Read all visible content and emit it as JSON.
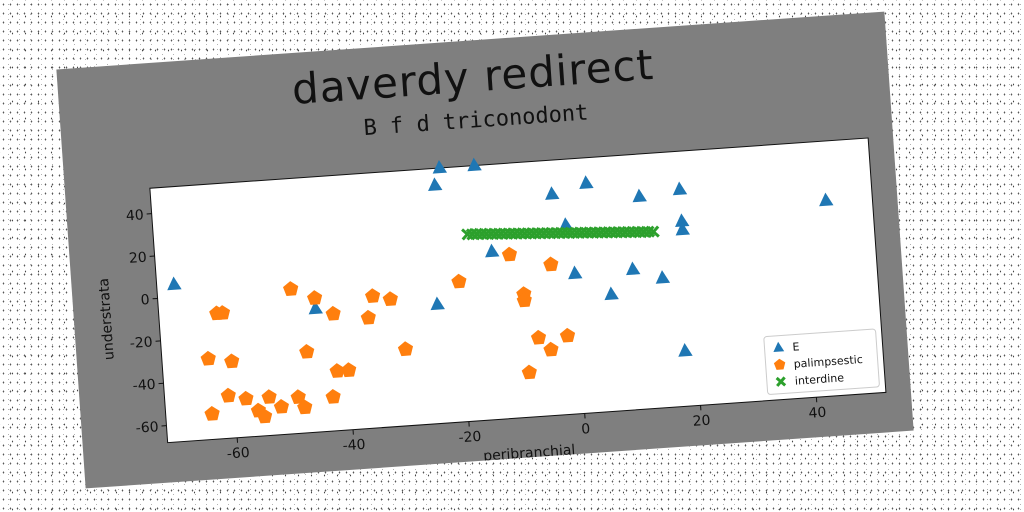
{
  "chart_data": {
    "type": "scatter",
    "title": "daverdy redirect",
    "subtitle": "B f d triconodont",
    "xlabel": "peribranchial",
    "ylabel": "understrata",
    "xlim": [
      -72,
      52
    ],
    "ylim": [
      -68,
      52
    ],
    "xticks": [
      -60,
      -40,
      -20,
      0,
      20,
      40
    ],
    "yticks": [
      -60,
      -40,
      -20,
      0,
      20,
      40
    ],
    "grid": false,
    "legend_position": "lower-right",
    "series": [
      {
        "name": "E",
        "marker": "triangle",
        "color": "#1f77b4",
        "points": [
          {
            "x": -69,
            "y": 6
          },
          {
            "x": -23,
            "y": 44
          },
          {
            "x": -22,
            "y": 52
          },
          {
            "x": -16,
            "y": 52
          },
          {
            "x": -3,
            "y": 36
          },
          {
            "x": 3,
            "y": 40
          },
          {
            "x": 12,
            "y": 32
          },
          {
            "x": 19,
            "y": 34
          },
          {
            "x": 19,
            "y": 19
          },
          {
            "x": 19,
            "y": 15
          },
          {
            "x": 44,
            "y": 24
          },
          {
            "x": -1,
            "y": 21
          },
          {
            "x": -14,
            "y": 11
          },
          {
            "x": 0,
            "y": -2
          },
          {
            "x": 10,
            "y": -2
          },
          {
            "x": 6,
            "y": -13
          },
          {
            "x": 15,
            "y": -7
          },
          {
            "x": -24,
            "y": -12
          },
          {
            "x": -45,
            "y": -10
          },
          {
            "x": 18,
            "y": -42
          }
        ]
      },
      {
        "name": "palimpsestic",
        "marker": "pentagon",
        "color": "#ff7f0e",
        "points": [
          {
            "x": -62,
            "y": -9
          },
          {
            "x": -61,
            "y": -9
          },
          {
            "x": -49,
            "y": 0
          },
          {
            "x": -45,
            "y": -5
          },
          {
            "x": -42,
            "y": -13
          },
          {
            "x": -35,
            "y": -6
          },
          {
            "x": -32,
            "y": -8
          },
          {
            "x": -36,
            "y": -16
          },
          {
            "x": -20,
            "y": -2
          },
          {
            "x": -11,
            "y": 9
          },
          {
            "x": -4,
            "y": 3
          },
          {
            "x": -9,
            "y": -10
          },
          {
            "x": -9,
            "y": -13
          },
          {
            "x": -64,
            "y": -30
          },
          {
            "x": -60,
            "y": -32
          },
          {
            "x": -47,
            "y": -30
          },
          {
            "x": -30,
            "y": -32
          },
          {
            "x": -7,
            "y": -31
          },
          {
            "x": -2,
            "y": -31
          },
          {
            "x": -5,
            "y": -37
          },
          {
            "x": -42,
            "y": -40
          },
          {
            "x": -40,
            "y": -40
          },
          {
            "x": -61,
            "y": -48
          },
          {
            "x": -58,
            "y": -50
          },
          {
            "x": -54,
            "y": -50
          },
          {
            "x": -49,
            "y": -51
          },
          {
            "x": -64,
            "y": -56
          },
          {
            "x": -56,
            "y": -56
          },
          {
            "x": -52,
            "y": -55
          },
          {
            "x": -55,
            "y": -59
          },
          {
            "x": -48,
            "y": -56
          },
          {
            "x": -43,
            "y": -52
          },
          {
            "x": -9,
            "y": -47
          }
        ]
      },
      {
        "name": "interdine",
        "marker": "x",
        "color": "#2ca02c",
        "line": {
          "x_start": -18,
          "x_end": 14,
          "y_start": 20,
          "y_end": 15,
          "count": 40
        }
      }
    ]
  }
}
